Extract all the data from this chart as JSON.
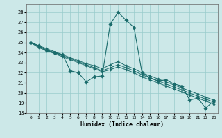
{
  "xlabel": "Humidex (Indice chaleur)",
  "bg_color": "#cce8e8",
  "grid_color": "#99cccc",
  "line_color": "#1a6b6b",
  "xlim": [
    -0.5,
    23.5
  ],
  "ylim": [
    18,
    28.8
  ],
  "yticks": [
    18,
    19,
    20,
    21,
    22,
    23,
    24,
    25,
    26,
    27,
    28
  ],
  "xticks": [
    0,
    1,
    2,
    3,
    4,
    5,
    6,
    7,
    8,
    9,
    10,
    11,
    12,
    13,
    14,
    15,
    16,
    17,
    18,
    19,
    20,
    21,
    22,
    23
  ],
  "series_main": [
    25.0,
    24.7,
    24.2,
    24.0,
    23.8,
    22.2,
    22.0,
    21.1,
    21.6,
    21.7,
    26.8,
    28.0,
    27.2,
    26.5,
    22.0,
    21.5,
    21.2,
    21.3,
    20.9,
    20.7,
    19.3,
    19.5,
    18.5,
    19.2
  ],
  "series_linear": [
    [
      25.0,
      24.7,
      24.4,
      24.1,
      23.8,
      23.5,
      23.2,
      22.9,
      22.7,
      22.4,
      22.8,
      23.1,
      22.7,
      22.4,
      22.0,
      21.7,
      21.4,
      21.1,
      20.8,
      20.5,
      20.2,
      19.9,
      19.6,
      19.3
    ],
    [
      25.0,
      24.6,
      24.3,
      24.0,
      23.7,
      23.4,
      23.1,
      22.8,
      22.5,
      22.2,
      22.5,
      22.8,
      22.5,
      22.2,
      21.8,
      21.5,
      21.2,
      20.9,
      20.6,
      20.3,
      20.0,
      19.7,
      19.4,
      19.1
    ],
    [
      25.0,
      24.5,
      24.2,
      23.9,
      23.6,
      23.3,
      23.0,
      22.7,
      22.4,
      22.1,
      22.3,
      22.6,
      22.3,
      22.0,
      21.6,
      21.3,
      21.0,
      20.7,
      20.4,
      20.1,
      19.8,
      19.5,
      19.2,
      18.9
    ]
  ]
}
